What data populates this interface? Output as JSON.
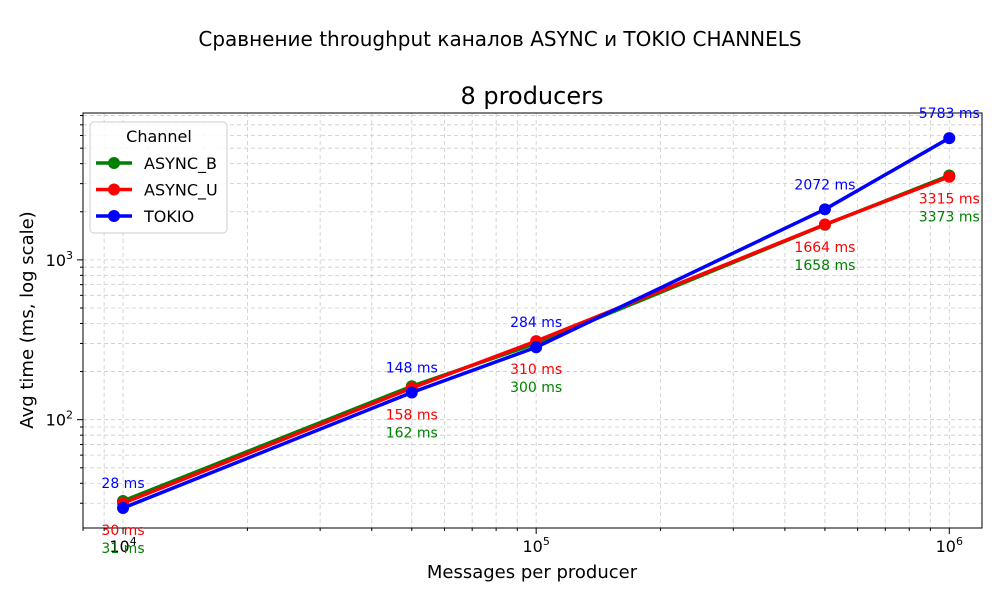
{
  "figure_title": "Сравнение throughput каналов ASYNC и TOKIO CHANNELS",
  "chart_data": {
    "type": "line",
    "title": "8 producers",
    "xlabel": "Messages per producer",
    "ylabel": "Avg time (ms, log scale)",
    "x_scale": "log",
    "y_scale": "log",
    "x": [
      10000,
      50000,
      100000,
      500000,
      1000000
    ],
    "xlim": [
      8000,
      1200000
    ],
    "ylim": [
      21,
      8300
    ],
    "x_ticks": [
      {
        "value": 10000,
        "base": "10",
        "exp": "4"
      },
      {
        "value": 100000,
        "base": "10",
        "exp": "5"
      },
      {
        "value": 1000000,
        "base": "10",
        "exp": "6"
      }
    ],
    "y_ticks": [
      {
        "value": 100,
        "base": "10",
        "exp": "2"
      },
      {
        "value": 1000,
        "base": "10",
        "exp": "3"
      }
    ],
    "grid": true,
    "legend_position": "top-left",
    "legend_title": "Channel",
    "series": [
      {
        "name": "ASYNC_B",
        "color": "#008000",
        "values": [
          31,
          162,
          300,
          1658,
          3373
        ],
        "labels": [
          "31 ms",
          "162 ms",
          "300 ms",
          "1658 ms",
          "3373 ms"
        ]
      },
      {
        "name": "ASYNC_U",
        "color": "#ff0000",
        "values": [
          30,
          158,
          310,
          1664,
          3315
        ],
        "labels": [
          "30 ms",
          "158 ms",
          "310 ms",
          "1664 ms",
          "3315 ms"
        ]
      },
      {
        "name": "TOKIO",
        "color": "#0000ff",
        "values": [
          28,
          148,
          284,
          2072,
          5783
        ],
        "labels": [
          "28 ms",
          "148 ms",
          "284 ms",
          "2072 ms",
          "5783 ms"
        ]
      }
    ]
  }
}
